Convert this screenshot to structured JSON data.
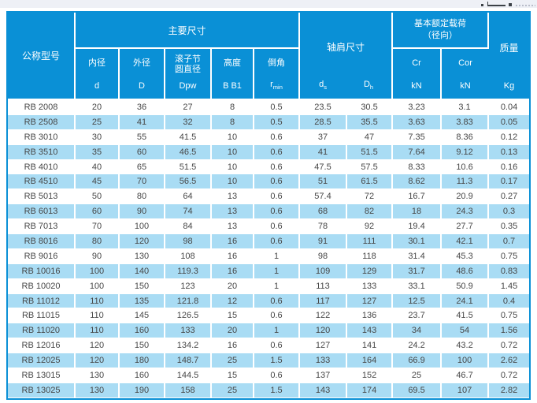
{
  "icons": {
    "top_right_fragment": "clipped-dimension-drawing-marks"
  },
  "colors": {
    "header_blue": "#0a90d6",
    "row_alt_blue": "#a9dcf4",
    "text_dark": "#474747",
    "top_strip": "#eef0f6"
  },
  "table": {
    "header": {
      "model": "公称型号",
      "main_dims": "主要尺寸",
      "shoulder_dims": "轴肩尺寸",
      "load_line1": "基本额定载荷",
      "load_line2": "（径向）",
      "mass": "质量",
      "inner_label": "内径",
      "inner_sym": "d",
      "outer_label": "外径",
      "outer_sym": "D",
      "pitch_label1": "滚子节",
      "pitch_label2": "圆直径",
      "pitch_sym": "Dpw",
      "height_label": "高度",
      "height_sym": "B B1",
      "chamfer_label": "倒角",
      "chamfer_sym_base": "r",
      "chamfer_sym_sub": "min",
      "ds_base": "d",
      "ds_sub": "s",
      "dh_base": "D",
      "dh_sub": "h",
      "cr": "Cr",
      "cor": "Cor",
      "kn_unit": "kN",
      "kg_unit": "Kg"
    },
    "columns_keys": [
      "model",
      "d",
      "D",
      "Dpw",
      "B-B1",
      "r-min",
      "d-s",
      "D-h",
      "Cr-kN",
      "Cor-kN",
      "mass-Kg"
    ],
    "rows": [
      [
        "RB 2008",
        "20",
        "36",
        "27",
        "8",
        "0.5",
        "23.5",
        "30.5",
        "3.23",
        "3.1",
        "0.04"
      ],
      [
        "RB 2508",
        "25",
        "41",
        "32",
        "8",
        "0.5",
        "28.5",
        "35.5",
        "3.63",
        "3.83",
        "0.05"
      ],
      [
        "RB 3010",
        "30",
        "55",
        "41.5",
        "10",
        "0.6",
        "37",
        "47",
        "7.35",
        "8.36",
        "0.12"
      ],
      [
        "RB 3510",
        "35",
        "60",
        "46.5",
        "10",
        "0.6",
        "41",
        "51.5",
        "7.64",
        "9.12",
        "0.13"
      ],
      [
        "RB 4010",
        "40",
        "65",
        "51.5",
        "10",
        "0.6",
        "47.5",
        "57.5",
        "8.33",
        "10.6",
        "0.16"
      ],
      [
        "RB 4510",
        "45",
        "70",
        "56.5",
        "10",
        "0.6",
        "51",
        "61.5",
        "8.62",
        "11.3",
        "0.17"
      ],
      [
        "RB 5013",
        "50",
        "80",
        "64",
        "13",
        "0.6",
        "57.4",
        "72",
        "16.7",
        "20.9",
        "0.27"
      ],
      [
        "RB 6013",
        "60",
        "90",
        "74",
        "13",
        "0.6",
        "68",
        "82",
        "18",
        "24.3",
        "0.3"
      ],
      [
        "RB 7013",
        "70",
        "100",
        "84",
        "13",
        "0.6",
        "78",
        "92",
        "19.4",
        "27.7",
        "0.35"
      ],
      [
        "RB 8016",
        "80",
        "120",
        "98",
        "16",
        "0.6",
        "91",
        "111",
        "30.1",
        "42.1",
        "0.7"
      ],
      [
        "RB 9016",
        "90",
        "130",
        "108",
        "16",
        "1",
        "98",
        "118",
        "31.4",
        "45.3",
        "0.75"
      ],
      [
        "RB 10016",
        "100",
        "140",
        "119.3",
        "16",
        "1",
        "109",
        "129",
        "31.7",
        "48.6",
        "0.83"
      ],
      [
        "RB 10020",
        "100",
        "150",
        "123",
        "20",
        "1",
        "113",
        "133",
        "33.1",
        "50.9",
        "1.45"
      ],
      [
        "RB 11012",
        "110",
        "135",
        "121.8",
        "12",
        "0.6",
        "117",
        "127",
        "12.5",
        "24.1",
        "0.4"
      ],
      [
        "RB 11015",
        "110",
        "145",
        "126.5",
        "15",
        "0.6",
        "122",
        "136",
        "23.7",
        "41.5",
        "0.75"
      ],
      [
        "RB 11020",
        "110",
        "160",
        "133",
        "20",
        "1",
        "120",
        "143",
        "34",
        "54",
        "1.56"
      ],
      [
        "RB 12016",
        "120",
        "150",
        "134.2",
        "16",
        "0.6",
        "127",
        "141",
        "24.2",
        "43.2",
        "0.72"
      ],
      [
        "RB 12025",
        "120",
        "180",
        "148.7",
        "25",
        "1.5",
        "133",
        "164",
        "66.9",
        "100",
        "2.62"
      ],
      [
        "RB 13015",
        "130",
        "160",
        "144.5",
        "15",
        "0.6",
        "137",
        "152",
        "25",
        "46.7",
        "0.72"
      ],
      [
        "RB 13025",
        "130",
        "190",
        "158",
        "25",
        "1.5",
        "143",
        "174",
        "69.5",
        "107",
        "2.82"
      ]
    ]
  }
}
